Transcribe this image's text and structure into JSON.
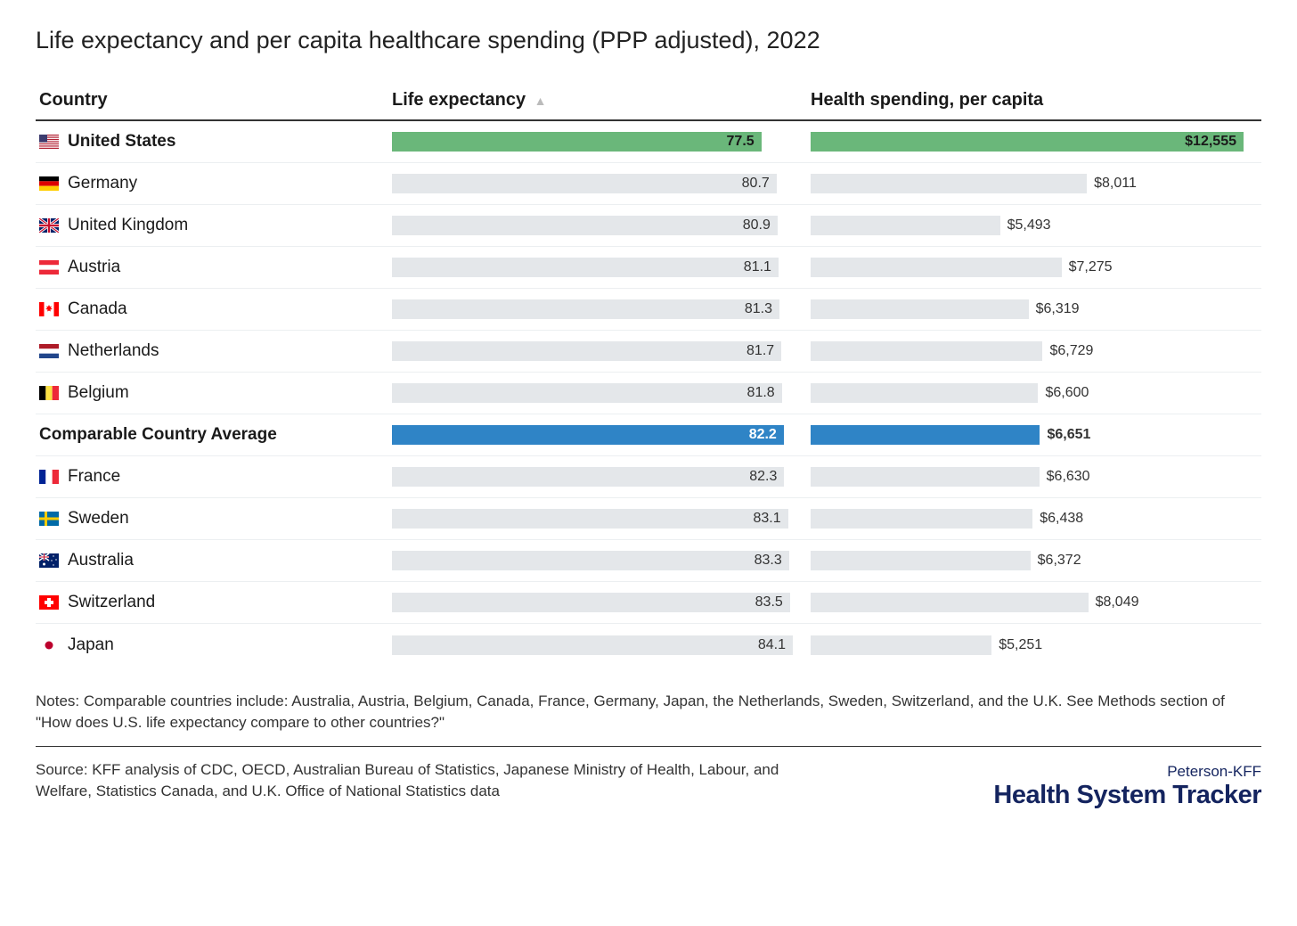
{
  "title": "Life expectancy and per capita healthcare spending (PPP adjusted), 2022",
  "columns": {
    "country": "Country",
    "life": "Life expectancy",
    "spending": "Health spending, per capita"
  },
  "sort_indicator": "▲",
  "colors": {
    "bar_default": "#e4e7ea",
    "bar_highlight_green": "#6ab77a",
    "bar_highlight_blue": "#2f84c6",
    "text_default": "#333333",
    "text_on_green": "#1a1a1a",
    "text_on_blue": "#ffffff",
    "row_border": "#eceff1",
    "header_border": "#333333",
    "logo_color": "#14245f"
  },
  "life_max": 84.1,
  "spend_max": 12555,
  "rows": [
    {
      "name": "United States",
      "flag": "us",
      "life": 77.5,
      "life_label": "77.5",
      "spend": 12555,
      "spend_label": "$12,555",
      "highlight": "green",
      "bold": true,
      "spend_label_outside": false
    },
    {
      "name": "Germany",
      "flag": "de",
      "life": 80.7,
      "life_label": "80.7",
      "spend": 8011,
      "spend_label": "$8,011",
      "highlight": null,
      "bold": false,
      "spend_label_outside": true
    },
    {
      "name": "United Kingdom",
      "flag": "gb",
      "life": 80.9,
      "life_label": "80.9",
      "spend": 5493,
      "spend_label": "$5,493",
      "highlight": null,
      "bold": false,
      "spend_label_outside": true
    },
    {
      "name": "Austria",
      "flag": "at",
      "life": 81.1,
      "life_label": "81.1",
      "spend": 7275,
      "spend_label": "$7,275",
      "highlight": null,
      "bold": false,
      "spend_label_outside": true
    },
    {
      "name": "Canada",
      "flag": "ca",
      "life": 81.3,
      "life_label": "81.3",
      "spend": 6319,
      "spend_label": "$6,319",
      "highlight": null,
      "bold": false,
      "spend_label_outside": true
    },
    {
      "name": "Netherlands",
      "flag": "nl",
      "life": 81.7,
      "life_label": "81.7",
      "spend": 6729,
      "spend_label": "$6,729",
      "highlight": null,
      "bold": false,
      "spend_label_outside": true
    },
    {
      "name": "Belgium",
      "flag": "be",
      "life": 81.8,
      "life_label": "81.8",
      "spend": 6600,
      "spend_label": "$6,600",
      "highlight": null,
      "bold": false,
      "spend_label_outside": true
    },
    {
      "name": "Comparable Country Average",
      "flag": null,
      "life": 82.2,
      "life_label": "82.2",
      "spend": 6651,
      "spend_label": "$6,651",
      "highlight": "blue",
      "bold": true,
      "spend_label_outside": true
    },
    {
      "name": "France",
      "flag": "fr",
      "life": 82.3,
      "life_label": "82.3",
      "spend": 6630,
      "spend_label": "$6,630",
      "highlight": null,
      "bold": false,
      "spend_label_outside": true
    },
    {
      "name": "Sweden",
      "flag": "se",
      "life": 83.1,
      "life_label": "83.1",
      "spend": 6438,
      "spend_label": "$6,438",
      "highlight": null,
      "bold": false,
      "spend_label_outside": true
    },
    {
      "name": "Australia",
      "flag": "au",
      "life": 83.3,
      "life_label": "83.3",
      "spend": 6372,
      "spend_label": "$6,372",
      "highlight": null,
      "bold": false,
      "spend_label_outside": true
    },
    {
      "name": "Switzerland",
      "flag": "ch",
      "life": 83.5,
      "life_label": "83.5",
      "spend": 8049,
      "spend_label": "$8,049",
      "highlight": null,
      "bold": false,
      "spend_label_outside": true
    },
    {
      "name": "Japan",
      "flag": "jp",
      "life": 84.1,
      "life_label": "84.1",
      "spend": 5251,
      "spend_label": "$5,251",
      "highlight": null,
      "bold": false,
      "spend_label_outside": true
    }
  ],
  "notes": "Notes: Comparable countries include: Australia, Austria, Belgium, Canada, France, Germany, Japan, the Netherlands, Sweden, Switzerland, and the U.K. See Methods section of \"How does U.S. life expectancy compare to other countries?\"",
  "source": "Source: KFF analysis of CDC, OECD, Australian Bureau of Statistics, Japanese Ministry of Health, Labour, and Welfare, Statistics Canada, and U.K. Office of National Statistics data",
  "logo": {
    "top": "Peterson-KFF",
    "bottom": "Health System Tracker"
  }
}
